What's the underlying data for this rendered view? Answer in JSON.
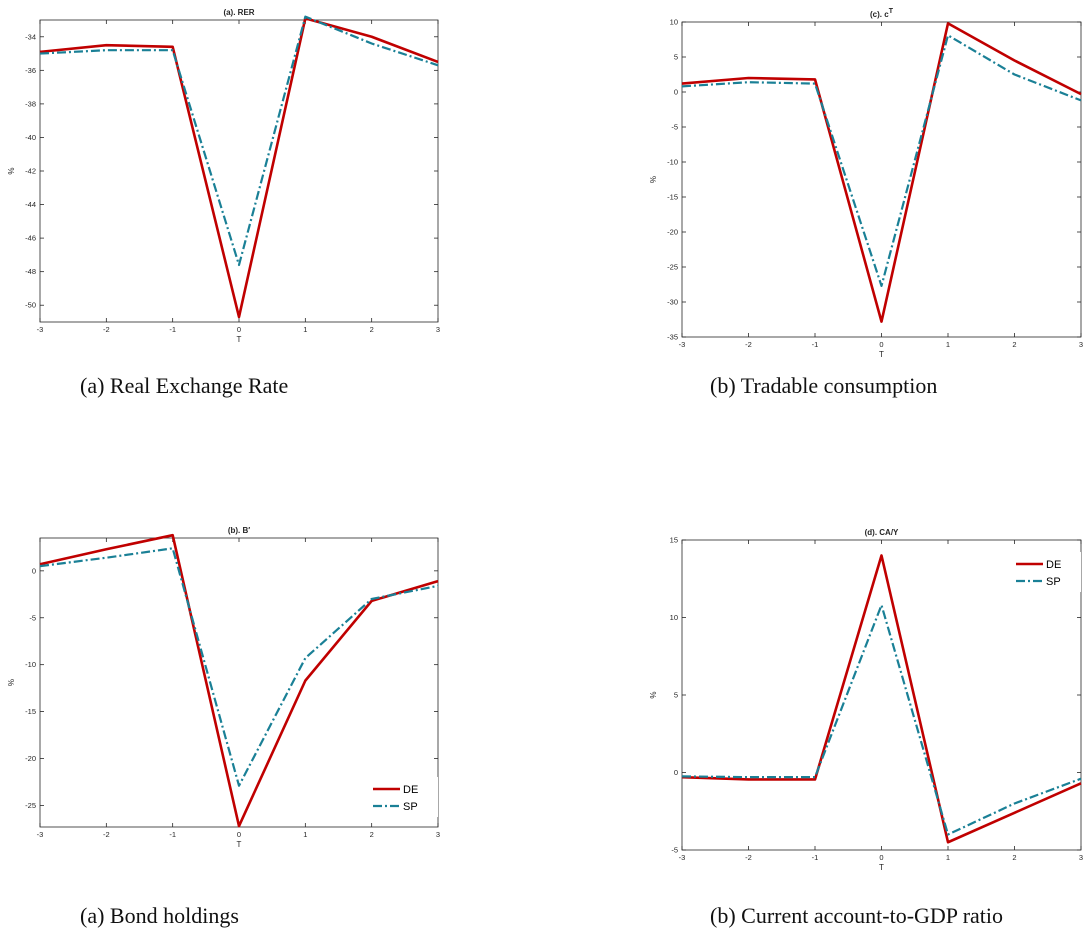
{
  "colors": {
    "DE": "#c00000",
    "SP": "#1a8096"
  },
  "captions": [
    "(a) Real Exchange Rate",
    "(b) Tradable consumption",
    "(a) Bond holdings",
    "(b) Current account-to-GDP ratio"
  ],
  "chart_data": [
    {
      "type": "line",
      "title": "(a). RER",
      "xlabel": "T",
      "ylabel": "%",
      "x": [
        -3,
        -2,
        -1,
        0,
        1,
        2,
        3
      ],
      "xlim": [
        -3,
        3
      ],
      "ylim": [
        -51,
        -33
      ],
      "xticks": [
        "-3",
        "-2",
        "-1",
        "0",
        "1",
        "2",
        "3"
      ],
      "yticks": [
        "-34",
        "-36",
        "-38",
        "-40",
        "-42",
        "-44",
        "-46",
        "-48",
        "-50"
      ],
      "ytick_values": [
        -34,
        -36,
        -38,
        -40,
        -42,
        -44,
        -46,
        -48,
        -50
      ],
      "series": [
        {
          "name": "DE",
          "values": [
            -34.9,
            -34.5,
            -34.6,
            -50.7,
            -32.9,
            -34.0,
            -35.5
          ]
        },
        {
          "name": "SP",
          "values": [
            -35.0,
            -34.8,
            -34.8,
            -47.6,
            -32.8,
            -34.4,
            -35.7
          ]
        }
      ],
      "legend": ""
    },
    {
      "type": "line",
      "title": "(c). c",
      "title_sup": "T",
      "xlabel": "T",
      "ylabel": "%",
      "x": [
        -3,
        -2,
        -1,
        0,
        1,
        2,
        3
      ],
      "xlim": [
        -3,
        3
      ],
      "ylim": [
        -35,
        10
      ],
      "xticks": [
        "-3",
        "-2",
        "-1",
        "0",
        "1",
        "2",
        "3"
      ],
      "yticks": [
        "10",
        "5",
        "0",
        "-5",
        "-10",
        "-15",
        "-20",
        "-25",
        "-30",
        "-35"
      ],
      "ytick_values": [
        10,
        5,
        0,
        -5,
        -10,
        -15,
        -20,
        -25,
        -30,
        -35
      ],
      "series": [
        {
          "name": "DE",
          "values": [
            1.2,
            2.0,
            1.8,
            -32.8,
            9.8,
            4.5,
            -0.3
          ]
        },
        {
          "name": "SP",
          "values": [
            0.8,
            1.4,
            1.2,
            -27.7,
            8.1,
            2.5,
            -1.2
          ]
        }
      ],
      "legend": ""
    },
    {
      "type": "line",
      "title": "(b). B′",
      "xlabel": "T",
      "ylabel": "%",
      "x": [
        -3,
        -2,
        -1,
        0,
        1,
        2,
        3
      ],
      "xlim": [
        -3,
        3
      ],
      "ylim": [
        -27.3,
        3.5
      ],
      "xticks": [
        "-3",
        "-2",
        "-1",
        "0",
        "1",
        "2",
        "3"
      ],
      "yticks": [
        "0",
        "-5",
        "-10",
        "-15",
        "-20",
        "-25"
      ],
      "ytick_values": [
        0,
        -5,
        -10,
        -15,
        -20,
        -25
      ],
      "series": [
        {
          "name": "DE",
          "values": [
            0.7,
            2.3,
            3.8,
            -27.2,
            -11.7,
            -3.2,
            -1.1
          ]
        },
        {
          "name": "SP",
          "values": [
            0.5,
            1.4,
            2.4,
            -22.9,
            -9.3,
            -3.0,
            -1.6
          ]
        }
      ],
      "legend": "bottom-right"
    },
    {
      "type": "line",
      "title": "(d). CA/Y",
      "xlabel": "T",
      "ylabel": "%",
      "x": [
        -3,
        -2,
        -1,
        0,
        1,
        2,
        3
      ],
      "xlim": [
        -3,
        3
      ],
      "ylim": [
        -5,
        15
      ],
      "xticks": [
        "-3",
        "-2",
        "-1",
        "0",
        "1",
        "2",
        "3"
      ],
      "yticks": [
        "15",
        "10",
        "5",
        "0",
        "-5"
      ],
      "ytick_values": [
        15,
        10,
        5,
        0,
        -5
      ],
      "series": [
        {
          "name": "DE",
          "values": [
            -0.3,
            -0.45,
            -0.45,
            14.0,
            -4.5,
            -2.6,
            -0.7
          ]
        },
        {
          "name": "SP",
          "values": [
            -0.25,
            -0.3,
            -0.3,
            10.8,
            -4.0,
            -2.0,
            -0.4
          ]
        }
      ],
      "legend": "top-right"
    }
  ]
}
